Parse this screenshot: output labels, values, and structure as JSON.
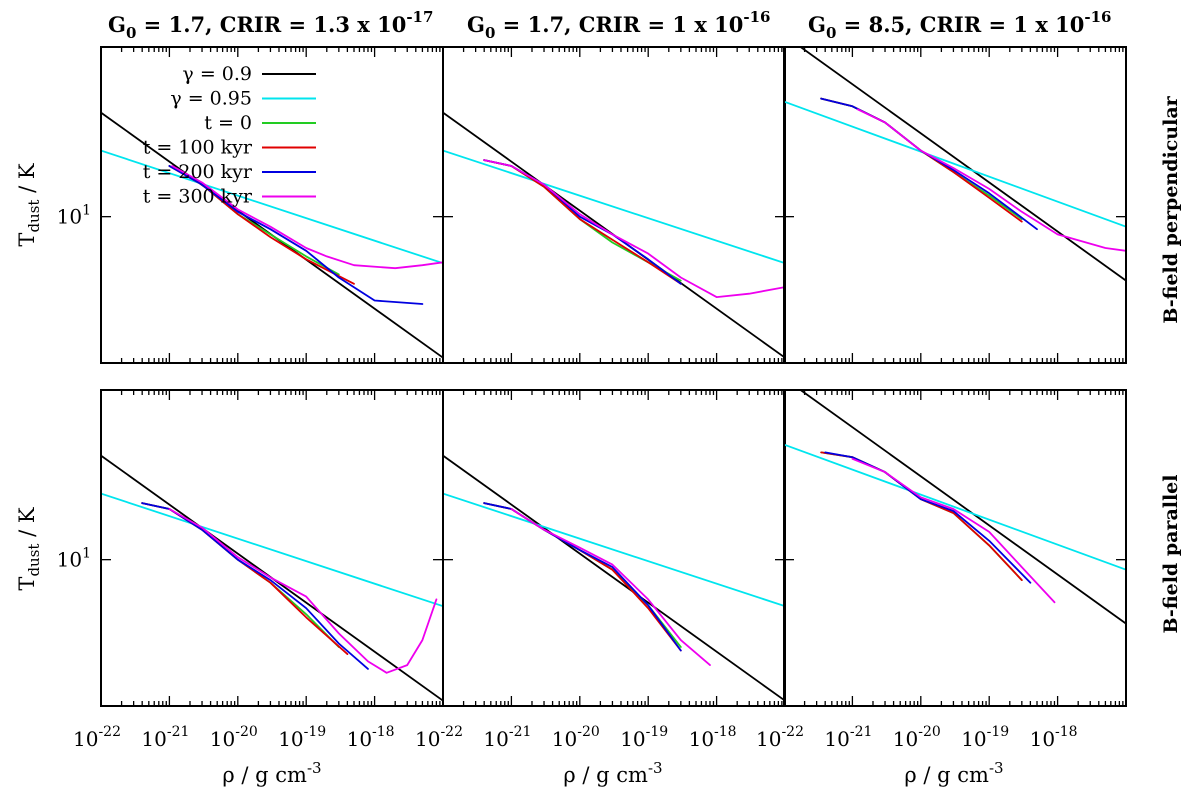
{
  "figure": {
    "columns": [
      {
        "title_prefix": "G",
        "title_sub": "0",
        "title_mid": " = 1.7, CRIR = 1.3 x 10",
        "title_exp": "-17"
      },
      {
        "title_prefix": "G",
        "title_sub": "0",
        "title_mid": " = 1.7, CRIR = 1 x 10",
        "title_exp": "-16"
      },
      {
        "title_prefix": "G",
        "title_sub": "0",
        "title_mid": " = 8.5, CRIR = 1 x 10",
        "title_exp": "-16"
      }
    ],
    "rows": [
      {
        "label": "B-field perpendicular"
      },
      {
        "label": "B-field parallel"
      }
    ],
    "ylabel": {
      "main": "T",
      "sub": "dust",
      "rest": " / K"
    },
    "xlabel": {
      "main": "ρ / g cm",
      "exp": "-3"
    },
    "ytick": {
      "label": "10",
      "exp": "1"
    },
    "xticks": [
      {
        "exp": "-22"
      },
      {
        "exp": "-21"
      },
      {
        "exp": "-20"
      },
      {
        "exp": "-19"
      },
      {
        "exp": "-18"
      }
    ],
    "xtick_base": "10"
  },
  "legend": [
    {
      "label": "γ = 0.9",
      "color": "#000000"
    },
    {
      "label": "γ = 0.95",
      "color": "#00e5ee"
    },
    {
      "label": "t = 0",
      "color": "#22cc22"
    },
    {
      "label": "t = 100 kyr",
      "color": "#e00000"
    },
    {
      "label": "t = 200 kyr",
      "color": "#0000e0"
    },
    {
      "label": "t = 300 kyr",
      "color": "#ee00ee"
    }
  ],
  "chart_data": [
    {
      "type": "line",
      "panel": "row1-col1",
      "x_scale": "log",
      "y_scale": "log",
      "xlim": [
        1e-22,
        1e-17
      ],
      "ylim": [
        5.5,
        20
      ],
      "series": [
        {
          "name": "γ = 0.9",
          "x": [
            1e-22,
            1e-17
          ],
          "y": [
            15.3,
            5.62
          ]
        },
        {
          "name": "γ = 0.95",
          "x": [
            1e-22,
            1e-17
          ],
          "y": [
            13.1,
            8.27
          ]
        },
        {
          "name": "t = 0",
          "x": [
            1e-21,
            3e-21,
            1e-20,
            3e-20,
            1e-19,
            3e-19
          ],
          "y": [
            12.3,
            11.4,
            10.1,
            9.3,
            8.5,
            7.9
          ]
        },
        {
          "name": "t = 100 kyr",
          "x": [
            1e-21,
            3e-21,
            1e-20,
            3e-20,
            1e-19,
            5e-19
          ],
          "y": [
            12.3,
            11.4,
            10.1,
            9.2,
            8.4,
            7.6
          ]
        },
        {
          "name": "t = 200 kyr",
          "x": [
            1e-21,
            3e-21,
            1e-20,
            3e-20,
            1e-19,
            3e-19,
            1e-18,
            5e-18
          ],
          "y": [
            12.3,
            11.4,
            10.2,
            9.5,
            8.7,
            7.8,
            7.1,
            7.0
          ]
        },
        {
          "name": "t = 300 kyr",
          "x": [
            1.1e-21,
            3e-21,
            1e-20,
            3e-20,
            1e-19,
            2e-19,
            5e-19,
            2e-18,
            5e-18,
            1e-17
          ],
          "y": [
            12.3,
            11.5,
            10.3,
            9.6,
            8.8,
            8.5,
            8.2,
            8.1,
            8.2,
            8.3
          ]
        }
      ]
    },
    {
      "type": "line",
      "panel": "row1-col2",
      "x_scale": "log",
      "y_scale": "log",
      "xlim": [
        1e-22,
        1e-17
      ],
      "ylim": [
        5.5,
        20
      ],
      "series": [
        {
          "name": "γ = 0.9",
          "x": [
            1e-22,
            1e-17
          ],
          "y": [
            15.3,
            5.62
          ]
        },
        {
          "name": "γ = 0.95",
          "x": [
            1e-22,
            1e-17
          ],
          "y": [
            13.1,
            8.27
          ]
        },
        {
          "name": "t = 0",
          "x": [
            4e-22,
            1e-21,
            3e-21,
            1e-20,
            3e-20,
            1e-19,
            3e-19
          ],
          "y": [
            12.6,
            12.3,
            11.3,
            9.9,
            9.0,
            8.3,
            7.7
          ]
        },
        {
          "name": "t = 100 kyr",
          "x": [
            4e-22,
            1e-21,
            3e-21,
            1e-20,
            3e-20,
            1e-19,
            3e-19
          ],
          "y": [
            12.6,
            12.3,
            11.3,
            9.9,
            9.1,
            8.3,
            7.6
          ]
        },
        {
          "name": "t = 200 kyr",
          "x": [
            4e-22,
            1e-21,
            3e-21,
            1e-20,
            3e-20,
            1e-19,
            3e-19
          ],
          "y": [
            12.6,
            12.3,
            11.4,
            10.0,
            9.3,
            8.4,
            7.6
          ]
        },
        {
          "name": "t = 300 kyr",
          "x": [
            4e-22,
            1e-21,
            3e-21,
            1e-20,
            3e-20,
            1e-19,
            3e-19,
            1e-18,
            3e-18,
            1e-17
          ],
          "y": [
            12.6,
            12.3,
            11.4,
            10.1,
            9.3,
            8.6,
            7.8,
            7.2,
            7.3,
            7.5
          ]
        }
      ]
    },
    {
      "type": "line",
      "panel": "row1-col3",
      "x_scale": "log",
      "y_scale": "log",
      "xlim": [
        1e-22,
        1e-17
      ],
      "ylim": [
        5.5,
        20
      ],
      "series": [
        {
          "name": "γ = 0.9",
          "x": [
            1e-22,
            1e-17
          ],
          "y": [
            21.0,
            7.7
          ]
        },
        {
          "name": "γ = 0.95",
          "x": [
            1e-22,
            1e-17
          ],
          "y": [
            16.0,
            9.6
          ]
        },
        {
          "name": "t = 0",
          "x": [
            3.5e-22,
            1e-21,
            3e-21,
            1e-20,
            3e-20,
            1e-19,
            3e-19
          ],
          "y": [
            16.2,
            15.7,
            14.7,
            13.1,
            12.0,
            10.9,
            9.9
          ]
        },
        {
          "name": "t = 100 kyr",
          "x": [
            3.5e-22,
            1e-21,
            3e-21,
            1e-20,
            3e-20,
            1e-19,
            3e-19
          ],
          "y": [
            16.2,
            15.7,
            14.7,
            13.1,
            12.0,
            10.8,
            9.8
          ]
        },
        {
          "name": "t = 200 kyr",
          "x": [
            3.5e-22,
            1e-21,
            3e-21,
            1e-20,
            3e-20,
            1e-19,
            5e-19
          ],
          "y": [
            16.2,
            15.7,
            14.7,
            13.1,
            12.1,
            11.0,
            9.5
          ]
        },
        {
          "name": "t = 300 kyr",
          "x": [
            1.2e-21,
            3e-21,
            1e-20,
            3e-20,
            1e-19,
            3e-19,
            1e-18,
            5e-18,
            1e-17
          ],
          "y": [
            15.5,
            14.7,
            13.1,
            12.2,
            11.2,
            10.2,
            9.3,
            8.8,
            8.7
          ]
        }
      ]
    },
    {
      "type": "line",
      "panel": "row2-col1",
      "x_scale": "log",
      "y_scale": "log",
      "xlim": [
        1e-22,
        1e-17
      ],
      "ylim": [
        5.5,
        20
      ],
      "series": [
        {
          "name": "γ = 0.9",
          "x": [
            1e-22,
            1e-17
          ],
          "y": [
            15.3,
            5.62
          ]
        },
        {
          "name": "γ = 0.95",
          "x": [
            1e-22,
            1e-17
          ],
          "y": [
            13.1,
            8.27
          ]
        },
        {
          "name": "t = 0",
          "x": [
            4e-22,
            1e-21,
            3e-21,
            1e-20,
            3e-20,
            1e-19,
            3e-19
          ],
          "y": [
            12.6,
            12.3,
            11.3,
            10.0,
            9.1,
            8.0,
            7.0
          ]
        },
        {
          "name": "t = 100 kyr",
          "x": [
            4e-22,
            1e-21,
            3e-21,
            1e-20,
            3e-20,
            1e-19,
            4e-19
          ],
          "y": [
            12.6,
            12.3,
            11.3,
            10.0,
            9.1,
            7.9,
            6.8
          ]
        },
        {
          "name": "t = 200 kyr",
          "x": [
            4e-22,
            1e-21,
            3e-21,
            1e-20,
            3e-20,
            1e-19,
            3e-19,
            8e-19
          ],
          "y": [
            12.6,
            12.3,
            11.3,
            10.0,
            9.2,
            8.2,
            7.1,
            6.4
          ]
        },
        {
          "name": "t = 300 kyr",
          "x": [
            1e-21,
            3e-21,
            1e-20,
            3e-20,
            1e-19,
            3e-19,
            8e-19,
            1.5e-18,
            3e-18,
            5e-18,
            8e-18
          ],
          "y": [
            12.3,
            11.4,
            10.1,
            9.3,
            8.6,
            7.4,
            6.6,
            6.3,
            6.5,
            7.2,
            8.5
          ]
        }
      ]
    },
    {
      "type": "line",
      "panel": "row2-col2",
      "x_scale": "log",
      "y_scale": "log",
      "xlim": [
        1e-22,
        1e-17
      ],
      "ylim": [
        5.5,
        20
      ],
      "series": [
        {
          "name": "γ = 0.9",
          "x": [
            1e-22,
            1e-17
          ],
          "y": [
            15.3,
            5.62
          ]
        },
        {
          "name": "γ = 0.95",
          "x": [
            1e-22,
            1e-17
          ],
          "y": [
            13.1,
            8.27
          ]
        },
        {
          "name": "t = 0",
          "x": [
            4e-22,
            1e-21,
            3e-21,
            1e-20,
            3e-20,
            1e-19,
            3e-19
          ],
          "y": [
            12.6,
            12.3,
            11.3,
            10.4,
            9.6,
            8.3,
            7.0
          ]
        },
        {
          "name": "t = 100 kyr",
          "x": [
            4e-22,
            1e-21,
            3e-21,
            1e-20,
            3e-20,
            1e-19,
            3e-19
          ],
          "y": [
            12.6,
            12.3,
            11.3,
            10.4,
            9.6,
            8.2,
            6.9
          ]
        },
        {
          "name": "t = 200 kyr",
          "x": [
            4e-22,
            1e-21,
            3e-21,
            1e-20,
            3e-20,
            1e-19,
            3e-19
          ],
          "y": [
            12.6,
            12.3,
            11.3,
            10.4,
            9.7,
            8.3,
            6.9
          ]
        },
        {
          "name": "t = 300 kyr",
          "x": [
            1e-21,
            3e-21,
            1e-20,
            3e-20,
            1e-19,
            3e-19,
            8e-19
          ],
          "y": [
            12.3,
            11.3,
            10.5,
            9.8,
            8.5,
            7.2,
            6.5
          ]
        }
      ]
    },
    {
      "type": "line",
      "panel": "row2-col3",
      "x_scale": "log",
      "y_scale": "log",
      "xlim": [
        1e-22,
        1e-17
      ],
      "ylim": [
        5.5,
        20
      ],
      "series": [
        {
          "name": "γ = 0.9",
          "x": [
            1e-22,
            1e-17
          ],
          "y": [
            21.0,
            7.7
          ]
        },
        {
          "name": "γ = 0.95",
          "x": [
            1e-22,
            1e-17
          ],
          "y": [
            16.0,
            9.6
          ]
        },
        {
          "name": "t = 0",
          "x": [
            3.5e-22,
            1e-21,
            3e-21,
            1e-20,
            3e-20,
            1e-19,
            3e-19
          ],
          "y": [
            15.5,
            15.2,
            14.3,
            12.8,
            12.1,
            10.6,
            9.2
          ]
        },
        {
          "name": "t = 100 kyr",
          "x": [
            3.5e-22,
            1e-21,
            3e-21,
            1e-20,
            3e-20,
            1e-19,
            3e-19
          ],
          "y": [
            15.5,
            15.2,
            14.3,
            12.8,
            12.1,
            10.6,
            9.2
          ]
        },
        {
          "name": "t = 200 kyr",
          "x": [
            4e-22,
            1e-21,
            3e-21,
            1e-20,
            3e-20,
            1e-19,
            4e-19
          ],
          "y": [
            15.5,
            15.2,
            14.3,
            12.8,
            12.2,
            10.8,
            9.1
          ]
        },
        {
          "name": "t = 300 kyr",
          "x": [
            1e-21,
            3e-21,
            1e-20,
            3e-20,
            1e-19,
            3e-19,
            9e-19
          ],
          "y": [
            15.1,
            14.3,
            12.9,
            12.3,
            11.2,
            9.7,
            8.4
          ]
        }
      ]
    }
  ]
}
